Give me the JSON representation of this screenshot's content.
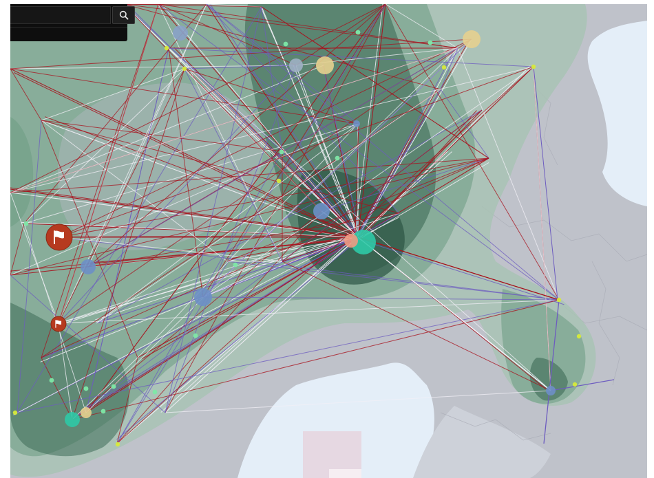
{
  "app": {
    "type": "geographic-network-map"
  },
  "search": {
    "value": "",
    "placeholder": "",
    "button_icon": "search-icon"
  },
  "colors": {
    "background_land": "#bfc2ca",
    "water": "#e4eef8",
    "density_light": "#a8c3b3",
    "density_mid": "#6f9e86",
    "density_dark": "#3e6b57",
    "density_core": "#2c5445",
    "edge_red": "#a8121d",
    "edge_white": "#f2f0f7",
    "edge_violet": "#6d5cc0",
    "node_blue": "#6d8fc7",
    "node_yellow": "#e6d08f",
    "node_teal": "#2fc9a6",
    "node_salmon": "#ee9a82",
    "marker_red": "#b63a20",
    "point_green": "#7ee8a6",
    "point_yellow": "#d7ea3a"
  },
  "markers": [
    {
      "name": "flag-marker",
      "icon": "flag-icon"
    },
    {
      "name": "flag-marker",
      "icon": "flag-icon"
    }
  ]
}
